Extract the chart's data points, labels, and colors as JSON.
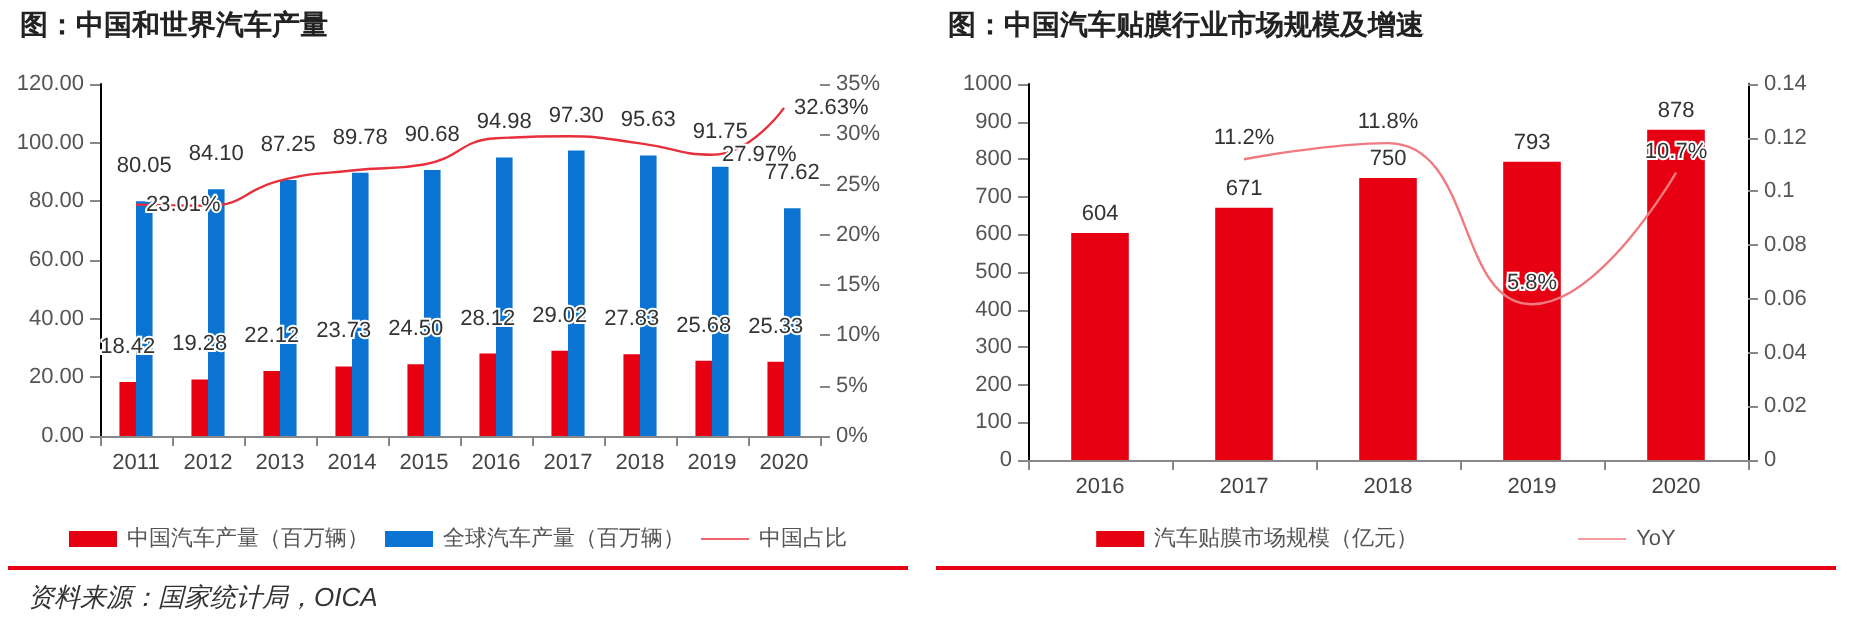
{
  "chart_data": [
    {
      "type": "bar",
      "title": "图：中国和世界汽车产量",
      "categories": [
        "2011",
        "2012",
        "2013",
        "2014",
        "2015",
        "2016",
        "2017",
        "2018",
        "2019",
        "2020"
      ],
      "series": [
        {
          "name": "中国汽车产量（百万辆）",
          "color": "#e60012",
          "values": [
            18.42,
            19.28,
            22.12,
            23.73,
            24.5,
            28.12,
            29.02,
            27.83,
            25.68,
            25.33
          ],
          "value_labels": [
            "18.42",
            "19.28",
            "22.12",
            "23.73",
            "24.50",
            "28.12",
            "29.02",
            "27.83",
            "25.68",
            "25.33"
          ]
        },
        {
          "name": "全球汽车产量（百万辆）",
          "color": "#0b73d1",
          "values": [
            80.05,
            84.1,
            87.25,
            89.78,
            90.68,
            94.98,
            97.3,
            95.63,
            91.75,
            77.62
          ],
          "value_labels": [
            "80.05",
            "84.10",
            "87.25",
            "89.78",
            "90.68",
            "94.98",
            "97.30",
            "95.63",
            "91.75",
            "77.62"
          ]
        },
        {
          "name": "中国占比",
          "type": "line",
          "axis": "y2",
          "color": "#e8303c",
          "values": [
            23.01,
            22.9,
            25.4,
            26.4,
            27.0,
            29.6,
            29.8,
            29.1,
            27.97,
            32.63
          ],
          "value_labels": [
            "23.01%",
            null,
            null,
            null,
            null,
            null,
            null,
            null,
            "27.97%",
            "32.63%"
          ]
        }
      ],
      "ylim": [
        0,
        120
      ],
      "yticks": [
        {
          "value": 0,
          "label": "0.00"
        },
        {
          "value": 20,
          "label": "20.00"
        },
        {
          "value": 40,
          "label": "40.00"
        },
        {
          "value": 60,
          "label": "60.00"
        },
        {
          "value": 80,
          "label": "80.00"
        },
        {
          "value": 100,
          "label": "100.00"
        },
        {
          "value": 120,
          "label": "120.00"
        }
      ],
      "y2lim": [
        0,
        35
      ],
      "y2ticks": [
        {
          "value": 0,
          "label": "0%"
        },
        {
          "value": 5,
          "label": "5%"
        },
        {
          "value": 10,
          "label": "10%"
        },
        {
          "value": 15,
          "label": "15%"
        },
        {
          "value": 20,
          "label": "20%"
        },
        {
          "value": 25,
          "label": "25%"
        },
        {
          "value": 30,
          "label": "30%"
        },
        {
          "value": 35,
          "label": "35%"
        }
      ],
      "marker": "none",
      "legend": "bottom",
      "grid": false,
      "annotations": [
        "资料来源：国家统计局，OICA"
      ]
    },
    {
      "type": "bar",
      "title": "图：中国汽车贴膜行业市场规模及增速",
      "categories": [
        "2016",
        "2017",
        "2018",
        "2019",
        "2020"
      ],
      "series": [
        {
          "name": "汽车贴膜市场规模（亿元）",
          "color": "#e60012",
          "values": [
            604,
            671,
            750,
            793,
            878
          ]
        },
        {
          "name": "YoY",
          "type": "line",
          "axis": "y2",
          "color": "#f07a80",
          "values": [
            null,
            0.112,
            0.118,
            0.058,
            0.107
          ],
          "value_labels": [
            null,
            "11.2%",
            "11.8%",
            "5.8%",
            "10.7%"
          ]
        }
      ],
      "ylim": [
        0,
        1000
      ],
      "yticks": [
        0,
        100,
        200,
        300,
        400,
        500,
        600,
        700,
        800,
        900,
        1000
      ],
      "y2lim": [
        0,
        0.14
      ],
      "y2ticks": [
        0,
        0.02,
        0.04,
        0.06,
        0.08,
        0.1,
        0.12,
        0.14
      ],
      "data_labels": true,
      "marker": "none",
      "legend": "bottom",
      "grid": false
    }
  ]
}
